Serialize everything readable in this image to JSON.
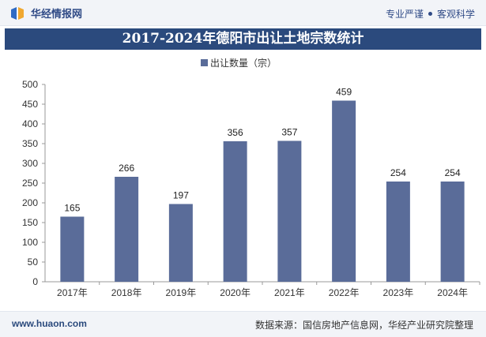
{
  "header": {
    "brand": "华经情报网",
    "tagline_a": "专业严谨",
    "tagline_b": "客观科学"
  },
  "footer": {
    "website": "www.huaon.com",
    "source": "数据来源：国信房地产信息网，华经产业研究院整理"
  },
  "colors": {
    "bar": "#5a6c99",
    "title_bg": "#2b4a7d",
    "axis": "#999999"
  },
  "chart_data": {
    "type": "bar",
    "title": "2017-2024年德阳市出让土地宗数统计",
    "legend": "出让数量（宗）",
    "legend_position": "top-center",
    "categories": [
      "2017年",
      "2018年",
      "2019年",
      "2020年",
      "2021年",
      "2022年",
      "2023年",
      "2024年"
    ],
    "series": [
      {
        "name": "出让数量（宗）",
        "values": [
          165,
          266,
          197,
          356,
          357,
          459,
          254,
          254
        ]
      }
    ],
    "ylim": [
      0,
      500
    ],
    "yticks": [
      0,
      50,
      100,
      150,
      200,
      250,
      300,
      350,
      400,
      450,
      500
    ],
    "xlabel": "",
    "ylabel": "",
    "grid": false
  }
}
